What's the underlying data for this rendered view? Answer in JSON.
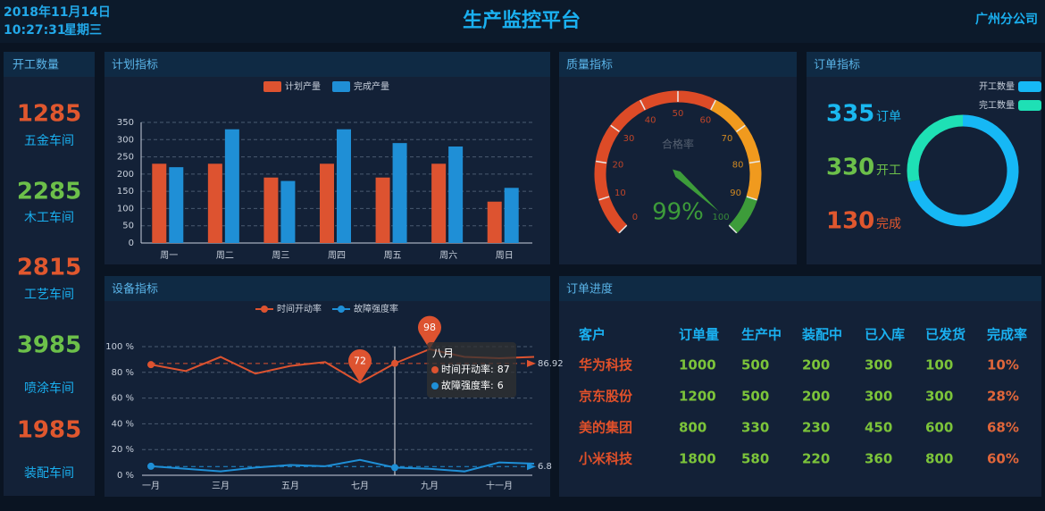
{
  "header": {
    "date": "2018年11月14日",
    "time": "10:27:31",
    "weekday": "星期三",
    "title": "生产监控平台",
    "branch": "广州分公司"
  },
  "workshops": {
    "title": "开工数量",
    "items": [
      {
        "value": 1285,
        "name": "五金车间",
        "color": "#e0572e"
      },
      {
        "value": 2285,
        "name": "木工车间",
        "color": "#6cc04a"
      },
      {
        "value": 2815,
        "name": "工艺车间",
        "color": "#e0572e"
      },
      {
        "value": 3985,
        "name": "喷涂车间",
        "color": "#6cc04a"
      },
      {
        "value": 1985,
        "name": "装配车间",
        "color": "#e0572e"
      }
    ]
  },
  "chart_data": [
    {
      "type": "bar",
      "title": "计划指标",
      "categories": [
        "周一",
        "周二",
        "周三",
        "周四",
        "周五",
        "周六",
        "周日"
      ],
      "series": [
        {
          "name": "计划产量",
          "color": "#dd5330",
          "values": [
            230,
            230,
            190,
            230,
            190,
            230,
            120
          ]
        },
        {
          "name": "完成产量",
          "color": "#1f8fd6",
          "values": [
            220,
            330,
            180,
            330,
            290,
            280,
            160
          ]
        }
      ],
      "ylim": [
        0,
        350
      ],
      "yticks": [
        0,
        50,
        100,
        150,
        200,
        250,
        300,
        350
      ],
      "grid": true
    },
    {
      "type": "gauge",
      "title": "质量指标",
      "name": "合格率",
      "value": 99,
      "value_label": "99%",
      "ylim": [
        0,
        100
      ],
      "yticks": [
        0,
        10,
        20,
        30,
        40,
        50,
        60,
        70,
        80,
        90,
        100
      ],
      "bands": [
        {
          "to": 60,
          "color": "#dd4b27"
        },
        {
          "to": 90,
          "color": "#f09a1e"
        },
        {
          "to": 100,
          "color": "#3d9c3a"
        }
      ]
    },
    {
      "type": "pie",
      "title": "订单指标",
      "donut": true,
      "kpis": [
        {
          "value": 335,
          "label": "订单",
          "color": "#1ab8f0"
        },
        {
          "value": 330,
          "label": "开工",
          "color": "#6cc04a"
        },
        {
          "value": 130,
          "label": "完成",
          "color": "#e0572e"
        }
      ],
      "categories": [
        "开工数量",
        "完工数量"
      ],
      "values": [
        330,
        130
      ],
      "colors": [
        "#16b8f5",
        "#1ee0b5"
      ]
    },
    {
      "type": "line",
      "title": "设备指标",
      "categories": [
        "一月",
        null,
        "三月",
        null,
        "五月",
        null,
        "七月",
        null,
        "九月",
        null,
        "十一月",
        null
      ],
      "series": [
        {
          "name": "时间开动率",
          "color": "#dd5330",
          "values": [
            86,
            81,
            92,
            79,
            85,
            88,
            72,
            87,
            98,
            92,
            91,
            92
          ],
          "average": 86.92
        },
        {
          "name": "故障强度率",
          "color": "#1f8fd6",
          "values": [
            7,
            5,
            3,
            6,
            8,
            7,
            12,
            6,
            5,
            3,
            10,
            9
          ],
          "average": 6.8
        }
      ],
      "ylim": [
        0,
        100
      ],
      "yticks": [
        {
          "value": 0,
          "label": "0 %"
        },
        {
          "value": 20,
          "label": "20 %"
        },
        {
          "value": 40,
          "label": "40 %"
        },
        {
          "value": 60,
          "label": "60 %"
        },
        {
          "value": 80,
          "label": "80 %"
        },
        {
          "value": 100,
          "label": "100 %"
        }
      ],
      "grid": true,
      "tooltip": {
        "title": "八月",
        "rows": [
          {
            "label": "时间开动率:"
          },
          {
            "label": "故障强度率:"
          }
        ]
      }
    }
  ],
  "orders": {
    "title": "订单进度",
    "columns": [
      "客户",
      "订单量",
      "生产中",
      "装配中",
      "已入库",
      "已发货",
      "完成率"
    ],
    "rows": [
      [
        "华为科技",
        1000,
        500,
        200,
        300,
        100,
        "10%"
      ],
      [
        "京东股份",
        1200,
        500,
        200,
        300,
        300,
        "28%"
      ],
      [
        "美的集团",
        800,
        330,
        230,
        450,
        600,
        "68%"
      ],
      [
        "小米科技",
        1800,
        580,
        220,
        360,
        800,
        "60%"
      ]
    ]
  }
}
